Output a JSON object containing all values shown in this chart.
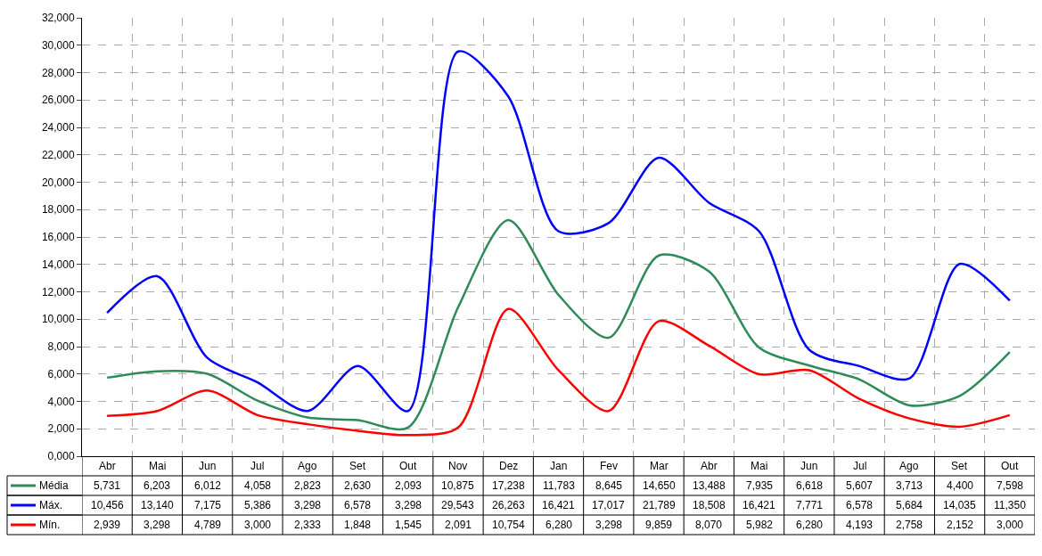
{
  "chart_data": {
    "type": "line",
    "categories": [
      "Abr",
      "Mai",
      "Jun",
      "Jul",
      "Ago",
      "Set",
      "Out",
      "Nov",
      "Dez",
      "Jan",
      "Fev",
      "Mar",
      "Abr",
      "Mai",
      "Jun",
      "Jul",
      "Ago",
      "Set",
      "Out"
    ],
    "series": [
      {
        "name": "Média",
        "color": "#2e8b57",
        "values": [
          5731,
          6203,
          6012,
          4058,
          2823,
          2630,
          2093,
          10875,
          17238,
          11783,
          8645,
          14650,
          13488,
          7935,
          6618,
          5607,
          3713,
          4400,
          7598
        ],
        "value_labels": [
          "5,731",
          "6,203",
          "6,012",
          "4,058",
          "2,823",
          "2,630",
          "2,093",
          "10,875",
          "17,238",
          "11,783",
          "8,645",
          "14,650",
          "13,488",
          "7,935",
          "6,618",
          "5,607",
          "3,713",
          "4,400",
          "7,598"
        ]
      },
      {
        "name": "Máx.",
        "color": "#0000ff",
        "values": [
          10456,
          13140,
          7175,
          5386,
          3298,
          6578,
          3298,
          29543,
          26263,
          16421,
          17017,
          21789,
          18508,
          16421,
          7771,
          6578,
          5684,
          14035,
          11350
        ],
        "value_labels": [
          "10,456",
          "13,140",
          "7,175",
          "5,386",
          "3,298",
          "6,578",
          "3,298",
          "29,543",
          "26,263",
          "16,421",
          "17,017",
          "21,789",
          "18,508",
          "16,421",
          "7,771",
          "6,578",
          "5,684",
          "14,035",
          "11,350"
        ]
      },
      {
        "name": "Mín.",
        "color": "#ff0000",
        "values": [
          2939,
          3298,
          4789,
          3000,
          2333,
          1848,
          1545,
          2091,
          10754,
          6280,
          3298,
          9859,
          8070,
          5982,
          6280,
          4193,
          2758,
          2152,
          3000
        ],
        "value_labels": [
          "2,939",
          "3,298",
          "4,789",
          "3,000",
          "2,333",
          "1,848",
          "1,545",
          "2,091",
          "10,754",
          "6,280",
          "3,298",
          "9,859",
          "8,070",
          "5,982",
          "6,280",
          "4,193",
          "2,758",
          "2,152",
          "3,000"
        ]
      }
    ],
    "ylim": [
      0,
      32000
    ],
    "yticks": [
      {
        "value": 0,
        "label": "0,000"
      },
      {
        "value": 2000,
        "label": "2,000"
      },
      {
        "value": 4000,
        "label": "4,000"
      },
      {
        "value": 6000,
        "label": "6,000"
      },
      {
        "value": 8000,
        "label": "8,000"
      },
      {
        "value": 10000,
        "label": "10,000"
      },
      {
        "value": 12000,
        "label": "12,000"
      },
      {
        "value": 14000,
        "label": "14,000"
      },
      {
        "value": 16000,
        "label": "16,000"
      },
      {
        "value": 18000,
        "label": "18,000"
      },
      {
        "value": 20000,
        "label": "20,000"
      },
      {
        "value": 22000,
        "label": "22,000"
      },
      {
        "value": 24000,
        "label": "24,000"
      },
      {
        "value": 26000,
        "label": "26,000"
      },
      {
        "value": 28000,
        "label": "28,000"
      },
      {
        "value": 30000,
        "label": "30,000"
      },
      {
        "value": 32000,
        "label": "32,000"
      }
    ],
    "grid": true,
    "legend": "bottom",
    "marker": "none",
    "line_style": "solid"
  }
}
